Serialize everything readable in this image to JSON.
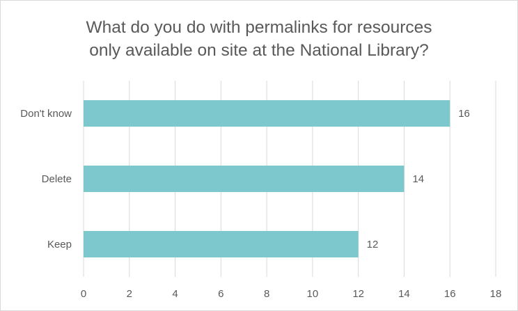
{
  "chart_data": {
    "type": "bar",
    "orientation": "horizontal",
    "title": [
      "What do you do with permalinks for resources",
      "only available on site at the National Library?"
    ],
    "categories": [
      "Don't know",
      "Delete",
      "Keep"
    ],
    "values": [
      16,
      14,
      12
    ],
    "xlim": [
      0,
      18
    ],
    "xticks": [
      0,
      2,
      4,
      6,
      8,
      10,
      12,
      14,
      16,
      18
    ],
    "grid": "vertical",
    "legend": "none",
    "data_labels": true,
    "colors": {
      "bar": "#7cc8cc",
      "grid": "#d9d9d9",
      "text": "#595959"
    }
  }
}
